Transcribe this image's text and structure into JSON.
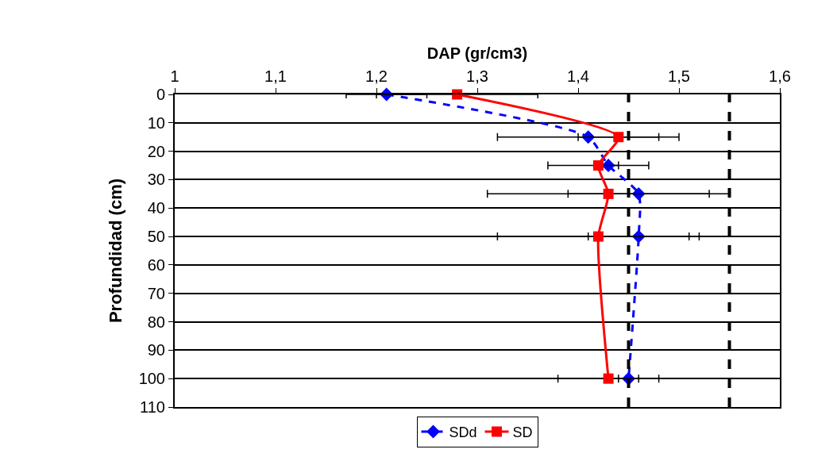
{
  "chart_data": {
    "type": "line",
    "xlabel": "DAP (gr/cm3)",
    "ylabel": "Profundidad (cm)",
    "xlim": [
      1,
      1.6
    ],
    "xticks": [
      1,
      {
        "value": 1.1,
        "label": "1,1"
      },
      {
        "value": 1.2,
        "label": "1,2"
      },
      {
        "value": 1.3,
        "label": "1,3"
      },
      {
        "value": 1.4,
        "label": "1,4"
      },
      {
        "value": 1.5,
        "label": "1,5"
      },
      {
        "value": 1.6,
        "label": "1,6"
      }
    ],
    "ylim": [
      110,
      0
    ],
    "yticks": [
      0,
      10,
      20,
      30,
      40,
      50,
      60,
      70,
      80,
      90,
      100,
      110
    ],
    "grid": "y",
    "legend": "bottom",
    "series": [
      {
        "name": "SDd",
        "color": "#0000ff",
        "marker": "diamond",
        "line_style": "dashed",
        "x": [
          1.21,
          1.41,
          1.43,
          1.46,
          1.46,
          1.45
        ],
        "values": [
          0,
          15,
          25,
          35,
          50,
          100
        ],
        "xerrors": [
          0.04,
          0.09,
          0.01,
          0.07,
          0.05,
          0.01
        ]
      },
      {
        "name": "SD",
        "color": "#ff0000",
        "marker": "square",
        "line_style": "solid",
        "x": [
          1.28,
          1.44,
          1.42,
          1.43,
          1.42,
          1.43
        ],
        "values": [
          0,
          15,
          25,
          35,
          50,
          100
        ],
        "xerrors": [
          0.08,
          0.04,
          0.05,
          0.12,
          0.1,
          0.05
        ]
      }
    ],
    "ref_lines": [
      {
        "axis": "x",
        "value": 1.45,
        "color": "#000000",
        "line_style": "dashed"
      },
      {
        "axis": "x",
        "value": 1.55,
        "color": "#000000",
        "line_style": "dashed"
      }
    ]
  }
}
